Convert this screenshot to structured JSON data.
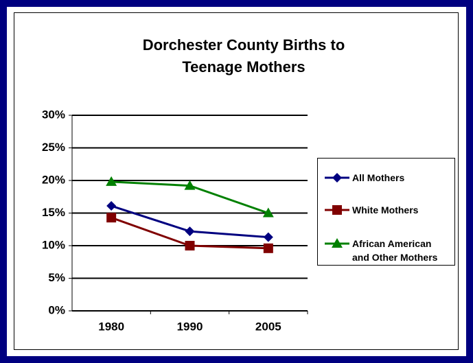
{
  "chart_data": {
    "type": "line",
    "title": "Dorchester County Births to Teenage Mothers",
    "categories": [
      "1980",
      "1990",
      "2005"
    ],
    "series": [
      {
        "name": "All Mothers",
        "color": "#000080",
        "marker": "diamond",
        "values": [
          16.1,
          12.2,
          11.3
        ]
      },
      {
        "name": "White Mothers",
        "color": "#800000",
        "marker": "square",
        "values": [
          14.3,
          10.0,
          9.6
        ]
      },
      {
        "name": "African American and Other Mothers",
        "color": "#008000",
        "marker": "triangle",
        "values": [
          19.8,
          19.2,
          15.0
        ]
      }
    ],
    "ylim": [
      0,
      30
    ],
    "yticks": [
      {
        "value": 0,
        "label": "0%"
      },
      {
        "value": 5,
        "label": "5%"
      },
      {
        "value": 10,
        "label": "10%"
      },
      {
        "value": 15,
        "label": "15%"
      },
      {
        "value": 20,
        "label": "20%"
      },
      {
        "value": 25,
        "label": "25%"
      },
      {
        "value": 30,
        "label": "30%"
      }
    ],
    "grid": true,
    "legend": "right"
  }
}
